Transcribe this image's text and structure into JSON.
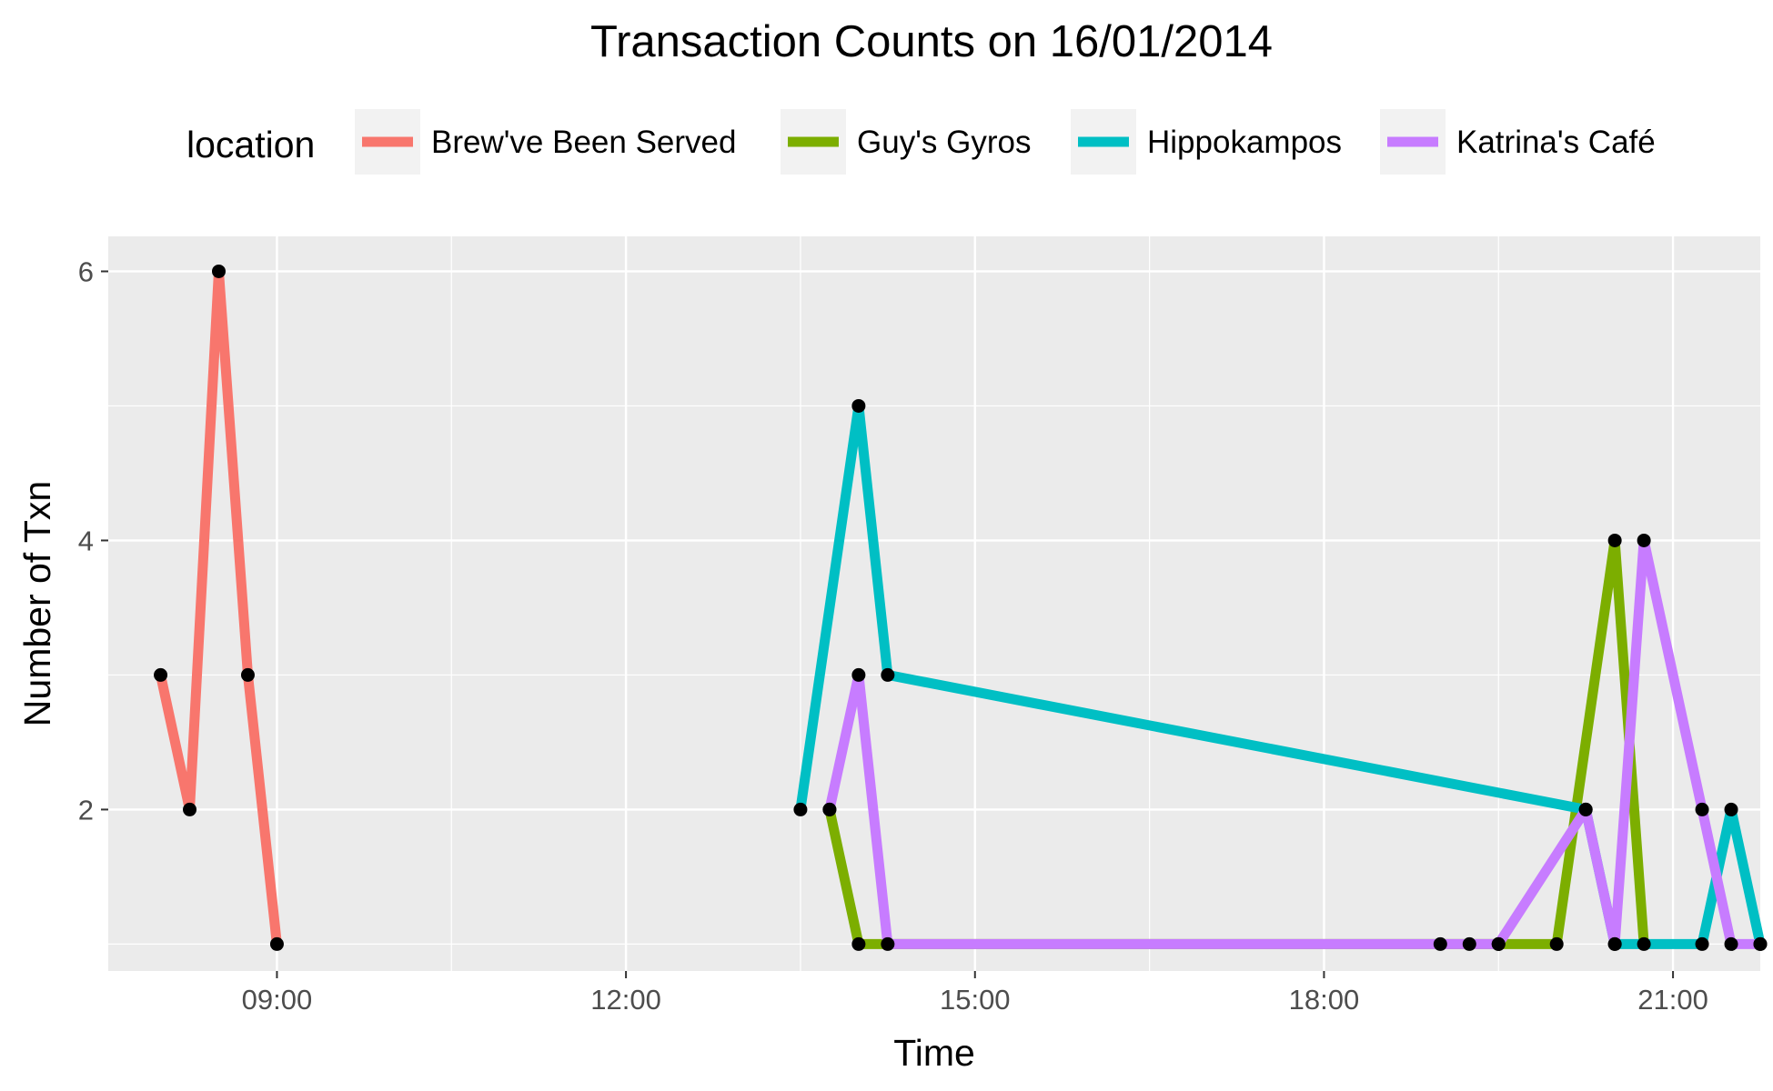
{
  "chart_data": {
    "type": "line",
    "title": "Transaction Counts on 16/01/2014",
    "xlabel": "Time",
    "ylabel": "Number of Txn",
    "xlim": [
      "07:33",
      "21:45"
    ],
    "ylim": [
      0.8,
      6.26
    ],
    "x_ticks": [
      "09:00",
      "12:00",
      "15:00",
      "18:00",
      "21:00"
    ],
    "y_ticks": [
      2,
      4,
      6
    ],
    "grid": true,
    "legend": {
      "title": "location",
      "position": "top"
    },
    "point_color": "#000000",
    "series": [
      {
        "name": "Brew've Been Served",
        "color": "#F8766D",
        "x": [
          "08:00",
          "08:15",
          "08:30",
          "08:45",
          "09:00"
        ],
        "y": [
          3,
          2,
          6,
          3,
          1
        ]
      },
      {
        "name": "Guy's Gyros",
        "color": "#7CAE00",
        "x": [
          "13:45",
          "14:00",
          "19:00",
          "19:15",
          "19:30",
          "20:00",
          "20:30",
          "20:45"
        ],
        "y": [
          2,
          1,
          1,
          1,
          1,
          1,
          4,
          1
        ]
      },
      {
        "name": "Hippokampos",
        "color": "#00BFC4",
        "x": [
          "13:30",
          "14:00",
          "14:15",
          "20:15",
          "20:30",
          "21:15",
          "21:30",
          "21:45"
        ],
        "y": [
          2,
          5,
          3,
          2,
          1,
          1,
          2,
          1
        ]
      },
      {
        "name": "Katrina's Café",
        "color": "#C77CFF",
        "x": [
          "13:45",
          "14:00",
          "14:15",
          "19:30",
          "20:15",
          "20:30",
          "20:45",
          "21:15",
          "21:30",
          "21:45"
        ],
        "y": [
          2,
          3,
          1,
          1,
          2,
          1,
          4,
          2,
          1,
          1
        ]
      }
    ]
  }
}
